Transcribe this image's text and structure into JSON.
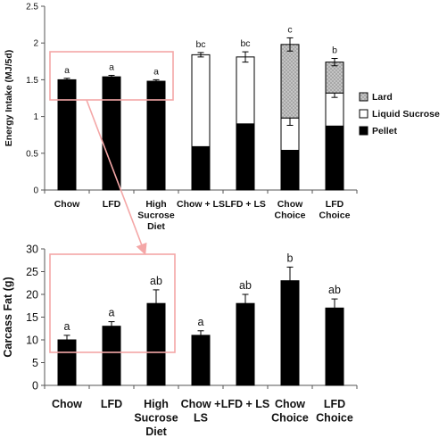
{
  "chart_data": [
    {
      "type": "bar",
      "stacked": true,
      "ylabel": "Energy Intake (MJ/5d)",
      "ylim": [
        0,
        2.5
      ],
      "yticks": [
        0,
        0.5,
        1,
        1.5,
        2,
        2.5
      ],
      "ytick_labels": [
        "0",
        "0.5",
        "1",
        "1.5",
        "2",
        "2.5"
      ],
      "categories": [
        [
          "Chow"
        ],
        [
          "LFD"
        ],
        [
          "High",
          "Sucrose",
          "Diet"
        ],
        [
          "Chow + LS"
        ],
        [
          "LFD + LS"
        ],
        [
          "Chow",
          "Choice"
        ],
        [
          "LFD",
          "Choice"
        ]
      ],
      "series": [
        {
          "name": "Pellet",
          "color": "#000000",
          "values": [
            1.5,
            1.54,
            1.48,
            0.59,
            0.9,
            0.54,
            0.87
          ],
          "errors": [
            0.02,
            0.02,
            0.02,
            0.02,
            0.05,
            0.02,
            0.04
          ]
        },
        {
          "name": "Liquid Sucrose",
          "color": "#ffffff",
          "values": [
            0,
            0,
            0,
            1.25,
            0.91,
            0.44,
            0.45
          ],
          "errors": [
            0,
            0,
            0,
            0,
            0,
            0.1,
            0.06
          ]
        },
        {
          "name": "Lard",
          "color": "#a6a6a6",
          "values": [
            0,
            0,
            0,
            0,
            0,
            1.0,
            0.42
          ],
          "errors": [
            0,
            0,
            0,
            0,
            0,
            0,
            0
          ]
        }
      ],
      "total_errors": [
        0.02,
        0.02,
        0.02,
        0.03,
        0.07,
        0.09,
        0.05
      ],
      "significance": [
        "a",
        "a",
        "a",
        "bc",
        "bc",
        "c",
        "b"
      ],
      "legend": [
        "Lard",
        "Liquid Sucrose",
        "Pellet"
      ],
      "legend_position": "right"
    },
    {
      "type": "bar",
      "ylabel": "Carcass Fat (g)",
      "ylim": [
        0,
        30
      ],
      "yticks": [
        0,
        5,
        10,
        15,
        20,
        25,
        30
      ],
      "ytick_labels": [
        "0",
        "5",
        "10",
        "15",
        "20",
        "25",
        "30"
      ],
      "categories": [
        [
          "Chow"
        ],
        [
          "LFD"
        ],
        [
          "High",
          "Sucrose",
          "Diet"
        ],
        [
          "Chow +",
          "LS"
        ],
        [
          "LFD + LS"
        ],
        [
          "Chow",
          "Choice"
        ],
        [
          "LFD",
          "Choice"
        ]
      ],
      "series": [
        {
          "color": "#000000",
          "values": [
            10,
            13,
            18,
            11,
            18,
            23,
            17
          ],
          "errors": [
            1,
            1,
            3,
            1,
            2,
            3,
            2
          ]
        }
      ],
      "significance": [
        "a",
        "a",
        "ab",
        "a",
        "ab",
        "b",
        "ab"
      ]
    }
  ],
  "annotation": {
    "highlight_color": "#f4a7a7"
  }
}
